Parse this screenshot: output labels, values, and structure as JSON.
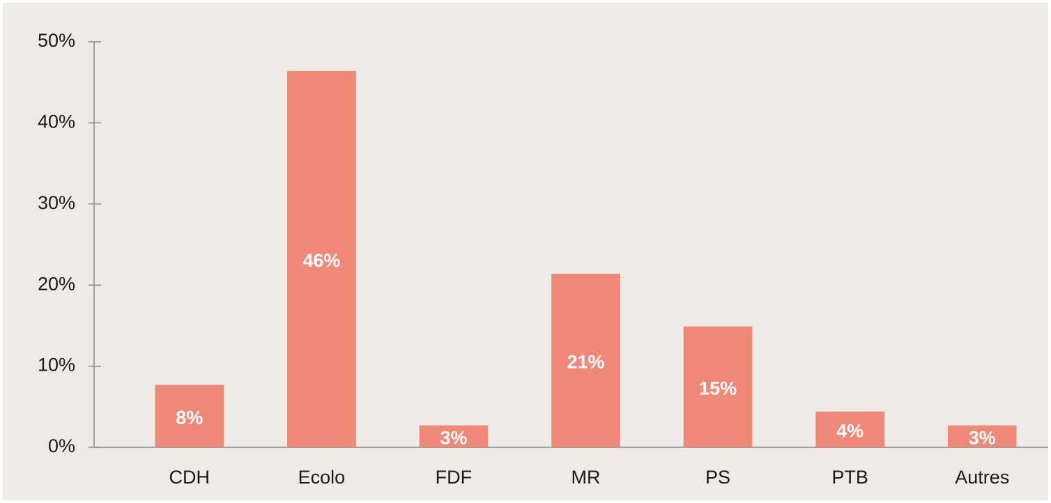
{
  "chart_data": {
    "type": "bar",
    "categories": [
      "CDH",
      "Ecolo",
      "FDF",
      "MR",
      "PS",
      "PTB",
      "Autres"
    ],
    "values": [
      7.7,
      46.4,
      2.7,
      21.4,
      14.9,
      4.4,
      2.7
    ],
    "value_labels": [
      "8%",
      "46%",
      "3%",
      "21%",
      "15%",
      "4%",
      "3%"
    ],
    "color": "#f08878",
    "ylim": [
      0,
      50
    ],
    "yticks": [
      {
        "value": 0,
        "label": "0%"
      },
      {
        "value": 10,
        "label": "10%"
      },
      {
        "value": 20,
        "label": "20%"
      },
      {
        "value": 30,
        "label": "30%"
      },
      {
        "value": 40,
        "label": "40%"
      },
      {
        "value": 50,
        "label": "50%"
      }
    ],
    "grid": false
  }
}
